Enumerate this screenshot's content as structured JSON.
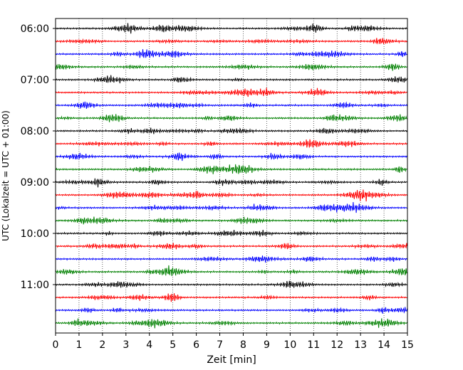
{
  "chart_data": {
    "type": "line",
    "title": "",
    "xlabel": "Zeit  [min]",
    "ylabel": "UTC (Lokalzeit = UTC + 01:00)",
    "xlim": [
      0,
      15
    ],
    "x_ticks": [
      "0",
      "1",
      "2",
      "3",
      "4",
      "5",
      "6",
      "7",
      "8",
      "9",
      "10",
      "11",
      "12",
      "13",
      "14",
      "15"
    ],
    "y_ticks": [
      "06:00",
      "07:00",
      "08:00",
      "09:00",
      "10:00",
      "11:00"
    ],
    "grid": "vertical dotted at each minute",
    "trace_interval_minutes": 15,
    "first_trace": "06:00",
    "trace_count": 24,
    "trace_colors": [
      "#000000",
      "#ff0000",
      "#0000ff",
      "#008000"
    ]
  }
}
